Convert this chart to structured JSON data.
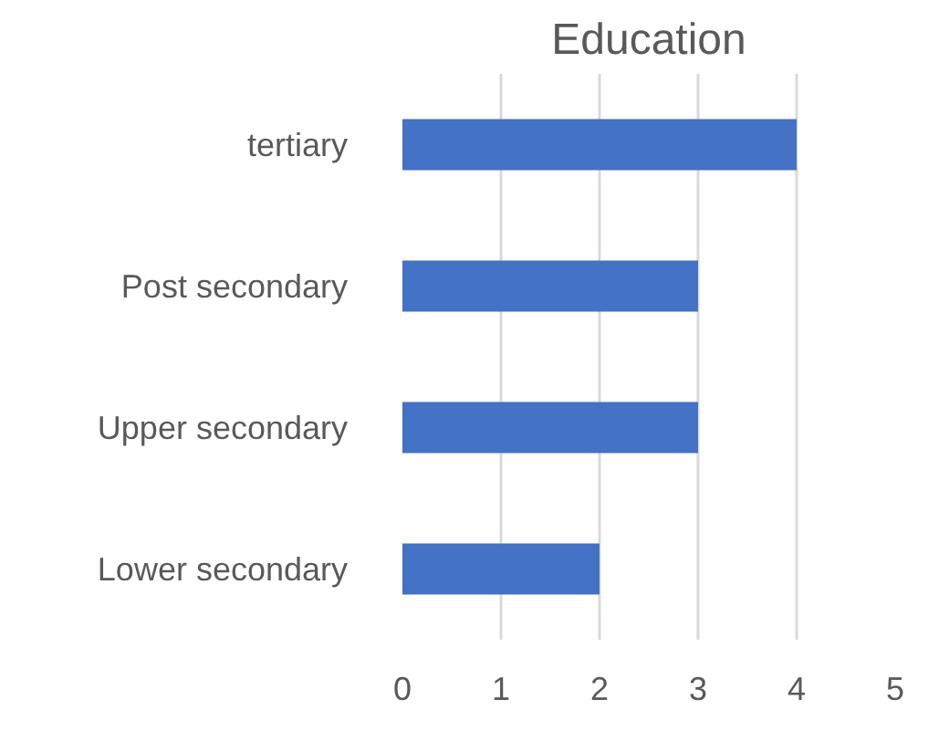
{
  "chart_data": {
    "type": "bar",
    "orientation": "horizontal",
    "title": "Education",
    "categories": [
      "tertiary",
      "Post secondary",
      "Upper secondary",
      "Lower secondary"
    ],
    "values": [
      4,
      3,
      3,
      2
    ],
    "color": "#4472c4",
    "xlim": [
      0,
      5
    ],
    "xticks": [
      0,
      1,
      2,
      3,
      4,
      5
    ],
    "grid": "x",
    "legend": false
  }
}
